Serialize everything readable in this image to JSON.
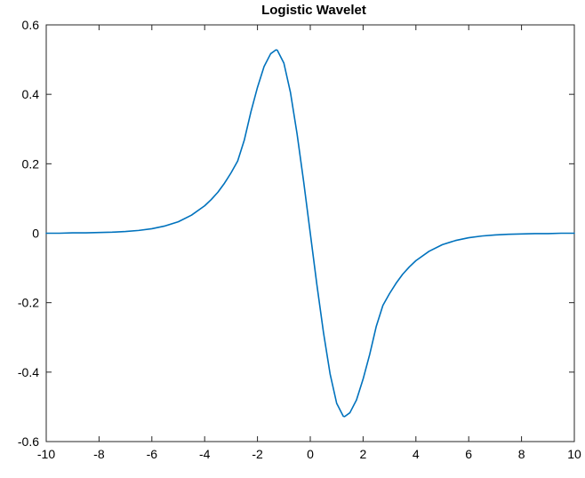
{
  "chart_data": {
    "type": "line",
    "title": "Logistic Wavelet",
    "xlabel": "",
    "ylabel": "",
    "xlim": [
      -10,
      10
    ],
    "ylim": [
      -0.6,
      0.6
    ],
    "x_ticks": [
      -10,
      -8,
      -6,
      -4,
      -2,
      0,
      2,
      4,
      6,
      8,
      10
    ],
    "x_tick_labels": [
      "-10",
      "-8",
      "-6",
      "-4",
      "-2",
      "0",
      "2",
      "4",
      "6",
      "8",
      "10"
    ],
    "y_ticks": [
      0.6,
      0.4,
      0.2,
      0,
      -0.2,
      -0.4,
      -0.6
    ],
    "y_tick_labels": [
      "0.6",
      "0.4",
      "0.2",
      "0",
      "-0.2",
      "-0.4",
      "-0.6"
    ],
    "grid": false,
    "legend": "none",
    "series": [
      {
        "color": "#0072BD",
        "x": [
          -10,
          -9.5,
          -9,
          -8.5,
          -8,
          -7.5,
          -7,
          -6.5,
          -6,
          -5.5,
          -5,
          -4.5,
          -4,
          -3.75,
          -3.5,
          -3.25,
          -3,
          -2.75,
          -2.5,
          -2.25,
          -2,
          -1.75,
          -1.5,
          -1.3,
          -1.25,
          -1,
          -0.75,
          -0.5,
          -0.25,
          0,
          0.25,
          0.5,
          0.75,
          1,
          1.25,
          1.3,
          1.5,
          1.75,
          2,
          2.25,
          2.5,
          2.75,
          3,
          3.25,
          3.5,
          3.75,
          4,
          4.5,
          5,
          5.5,
          6,
          6.5,
          7,
          7.5,
          8,
          8.5,
          9,
          9.5,
          10
        ],
        "y": [
          0,
          0,
          0.001,
          0.001,
          0.002,
          0.003,
          0.005,
          0.008,
          0.013,
          0.021,
          0.033,
          0.052,
          0.079,
          0.097,
          0.118,
          0.144,
          0.174,
          0.208,
          0.268,
          0.349,
          0.42,
          0.48,
          0.517,
          0.528,
          0.527,
          0.49,
          0.405,
          0.286,
          0.148,
          0,
          -0.148,
          -0.286,
          -0.405,
          -0.49,
          -0.527,
          -0.528,
          -0.517,
          -0.48,
          -0.42,
          -0.349,
          -0.268,
          -0.208,
          -0.174,
          -0.144,
          -0.118,
          -0.097,
          -0.079,
          -0.052,
          -0.033,
          -0.021,
          -0.013,
          -0.008,
          -0.005,
          -0.003,
          -0.002,
          -0.001,
          -0.001,
          0,
          0
        ]
      }
    ]
  }
}
